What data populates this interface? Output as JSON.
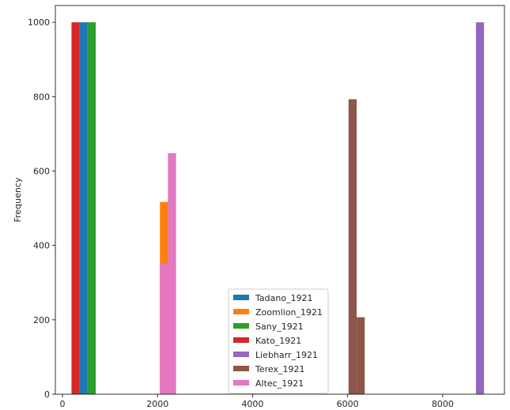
{
  "chart_data": {
    "type": "histogram",
    "xlabel": "",
    "ylabel": "Frequency",
    "xlim": [
      -150,
      9300
    ],
    "ylim": [
      0,
      1045
    ],
    "xticks": [
      0,
      2000,
      4000,
      6000,
      8000
    ],
    "yticks": [
      0,
      200,
      400,
      600,
      800,
      1000
    ],
    "grid": false,
    "legend_position": "lower-center",
    "series": [
      {
        "name": "Tadano_1921",
        "color": "#1f77b4",
        "bins": [
          {
            "x0": 360,
            "x1": 530,
            "value": 1000
          }
        ]
      },
      {
        "name": "Zoomlion_1921",
        "color": "#ff7f0e",
        "bins": [
          {
            "x0": 2050,
            "x1": 2220,
            "value": 517
          }
        ]
      },
      {
        "name": "Sany_1921",
        "color": "#2ca02c",
        "bins": [
          {
            "x0": 530,
            "x1": 700,
            "value": 1000
          }
        ]
      },
      {
        "name": "Kato_1921",
        "color": "#d62728",
        "bins": [
          {
            "x0": 190,
            "x1": 360,
            "value": 1000
          }
        ]
      },
      {
        "name": "Liebharr_1921",
        "color": "#9467bd",
        "bins": [
          {
            "x0": 8700,
            "x1": 8870,
            "value": 1000
          }
        ]
      },
      {
        "name": "Terex_1921",
        "color": "#8c564b",
        "bins": [
          {
            "x0": 6020,
            "x1": 6190,
            "value": 793
          },
          {
            "x0": 6190,
            "x1": 6360,
            "value": 207
          }
        ]
      },
      {
        "name": "Altec_1921",
        "color": "#e377c2",
        "bins": [
          {
            "x0": 2050,
            "x1": 2220,
            "value": 352
          },
          {
            "x0": 2220,
            "x1": 2390,
            "value": 648
          }
        ]
      }
    ]
  }
}
